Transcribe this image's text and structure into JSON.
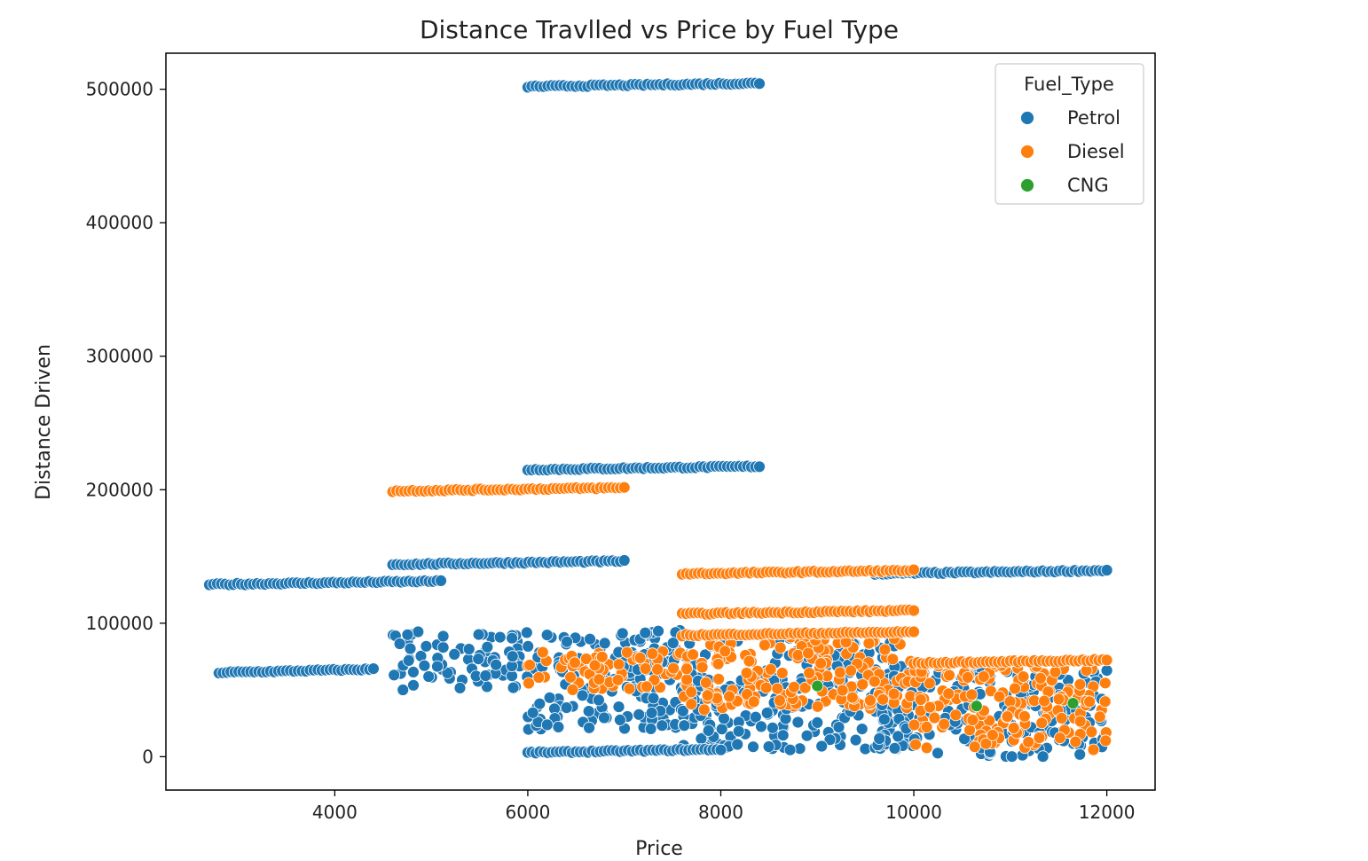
{
  "chart_data": {
    "type": "scatter",
    "title": "Distance Travlled vs Price by Fuel Type",
    "xlabel": "Price",
    "ylabel": "Distance Driven",
    "xlim": [
      2250,
      12500
    ],
    "ylim": [
      -25000,
      527000
    ],
    "xticks": [
      4000,
      6000,
      8000,
      10000,
      12000
    ],
    "yticks": [
      0,
      100000,
      200000,
      300000,
      400000,
      500000
    ],
    "legend": {
      "title": "Fuel_Type",
      "position": "top-right"
    },
    "grid": false,
    "series": [
      {
        "name": "Petrol",
        "color": "#1f77b4",
        "segments": [
          {
            "x_range": [
              6000,
              8400
            ],
            "y": 502000
          },
          {
            "x_range": [
              6000,
              8400
            ],
            "y": 215000
          },
          {
            "x_range": [
              4600,
              7000
            ],
            "y": 144000
          },
          {
            "x_range": [
              2700,
              5100
            ],
            "y": 129000
          },
          {
            "x_range": [
              2800,
              4400
            ],
            "y": 63000
          },
          {
            "x_range": [
              9600,
              12000
            ],
            "y": 137000
          },
          {
            "x_range": [
              6000,
              8000
            ],
            "y": 3000
          }
        ],
        "clusters": [
          {
            "x_range": [
              4600,
              6000
            ],
            "y_range": [
              50000,
              95000
            ]
          },
          {
            "x_range": [
              6000,
              7600
            ],
            "y_range": [
              20000,
              95000
            ]
          },
          {
            "x_range": [
              7600,
              10000
            ],
            "y_range": [
              5000,
              90000
            ]
          },
          {
            "x_range": [
              9600,
              12000
            ],
            "y_range": [
              0,
              65000
            ]
          }
        ]
      },
      {
        "name": "Diesel",
        "color": "#ff7f0e",
        "segments": [
          {
            "x_range": [
              4600,
              7000
            ],
            "y": 199000
          },
          {
            "x_range": [
              7600,
              10000
            ],
            "y": 137000
          },
          {
            "x_range": [
              7600,
              10000
            ],
            "y": 107000
          },
          {
            "x_range": [
              7600,
              10000
            ],
            "y": 91000
          },
          {
            "x_range": [
              10000,
              12000
            ],
            "y": 70000
          }
        ],
        "clusters": [
          {
            "x_range": [
              6000,
              7600
            ],
            "y_range": [
              50000,
              80000
            ]
          },
          {
            "x_range": [
              7600,
              10000
            ],
            "y_range": [
              35000,
              90000
            ]
          },
          {
            "x_range": [
              10000,
              12000
            ],
            "y_range": [
              5000,
              70000
            ]
          }
        ]
      },
      {
        "name": "CNG",
        "color": "#2ca02c",
        "points": [
          {
            "x": 9000,
            "y": 53000
          },
          {
            "x": 10650,
            "y": 38000
          },
          {
            "x": 11650,
            "y": 40000
          }
        ]
      }
    ]
  }
}
